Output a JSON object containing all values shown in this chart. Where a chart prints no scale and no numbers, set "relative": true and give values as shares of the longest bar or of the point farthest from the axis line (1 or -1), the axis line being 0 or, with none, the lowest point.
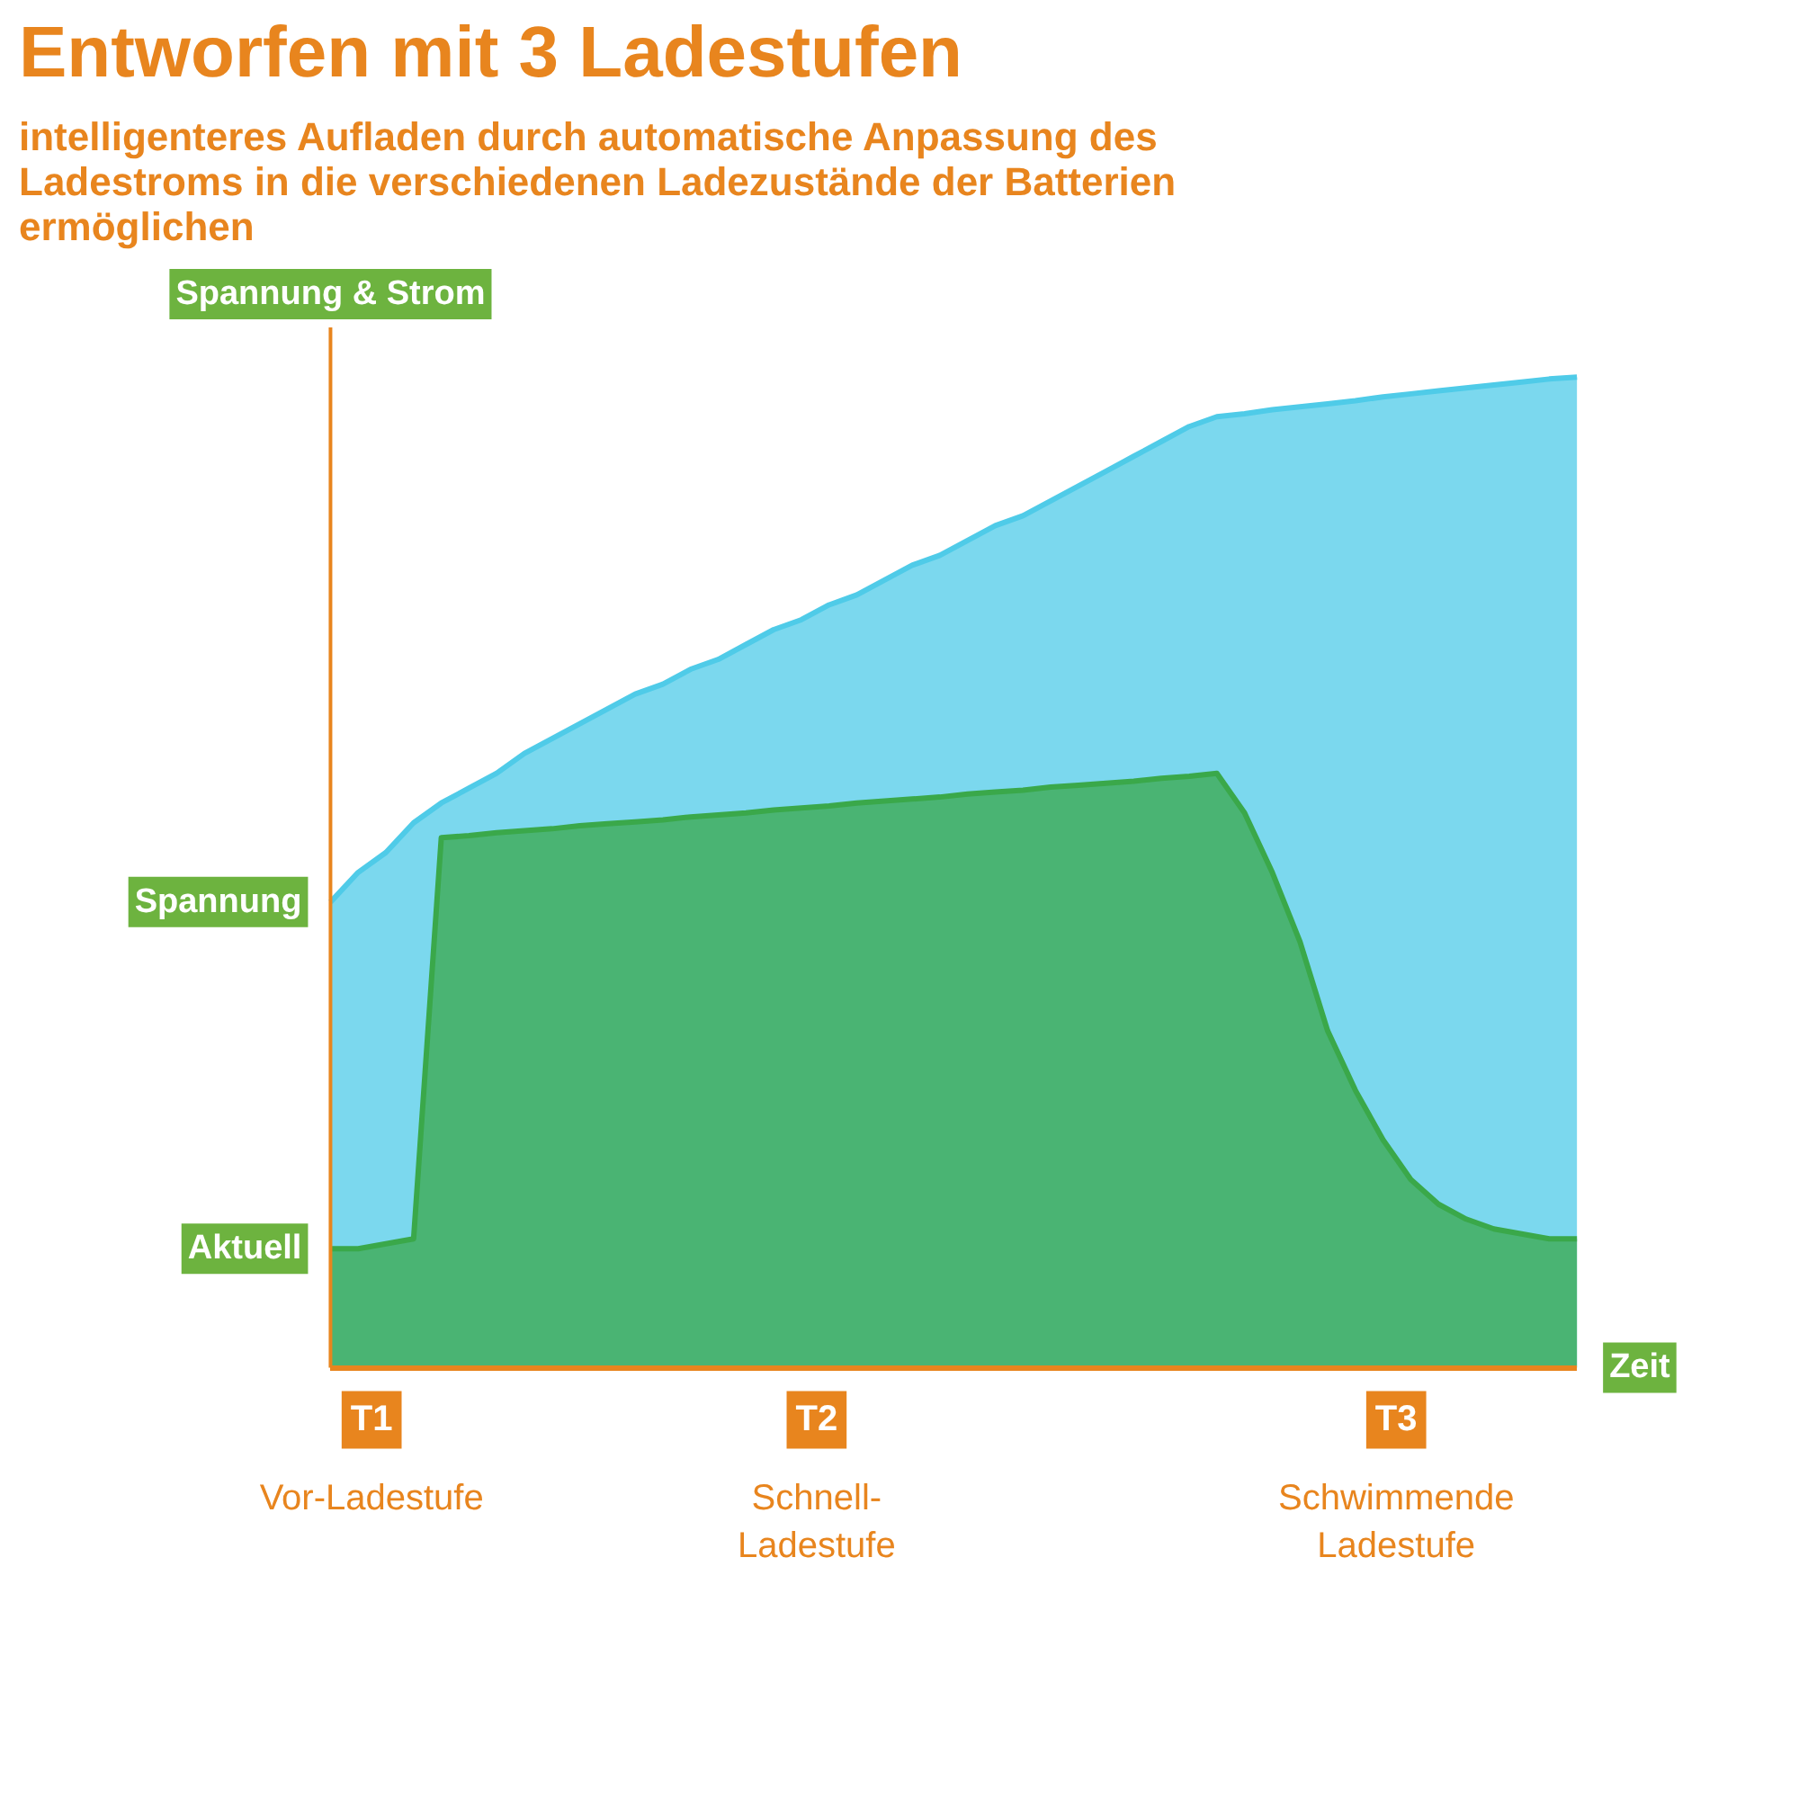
{
  "chart_data": {
    "type": "area",
    "title": "Entworfen mit 3 Ladestufen",
    "subtitle": "intelligenteres Aufladen durch automatische Anpassung des Ladestroms in die verschiedenen Ladezustände der Batterien ermöglichen",
    "xlabel": "Zeit",
    "ylabel": "Spannung & Strom",
    "relative": true,
    "categories": [
      null,
      null,
      null,
      null,
      null,
      null,
      null,
      null,
      null,
      null,
      null,
      null,
      null,
      null,
      null,
      null,
      null,
      null,
      null,
      null,
      null,
      null,
      null,
      null,
      null,
      null,
      null,
      null,
      null,
      null,
      null,
      null,
      null,
      null,
      null,
      null,
      null,
      null,
      null,
      null,
      null,
      null,
      null,
      null,
      null,
      null
    ],
    "series": [
      {
        "name": "Spannung",
        "color": "#4fcbe8",
        "values": [
          0.47,
          0.5,
          0.52,
          0.55,
          0.57,
          0.585,
          0.6,
          0.62,
          0.635,
          0.65,
          0.665,
          0.68,
          0.69,
          0.705,
          0.715,
          0.73,
          0.745,
          0.755,
          0.77,
          0.78,
          0.795,
          0.81,
          0.82,
          0.835,
          0.85,
          0.86,
          0.875,
          0.89,
          0.905,
          0.92,
          0.935,
          0.95,
          0.96,
          0.963,
          0.967,
          0.97,
          0.973,
          0.976,
          0.98,
          0.983,
          0.986,
          0.989,
          0.992,
          0.995,
          0.998,
          1
        ]
      },
      {
        "name": "Aktuell",
        "color": "#3aa84a",
        "values": [
          0.12,
          0.12,
          0.125,
          0.13,
          0.535,
          0.537,
          0.54,
          0.542,
          0.544,
          0.547,
          0.549,
          0.551,
          0.553,
          0.556,
          0.558,
          0.56,
          0.563,
          0.565,
          0.567,
          0.57,
          0.572,
          0.574,
          0.576,
          0.579,
          0.581,
          0.583,
          0.586,
          0.588,
          0.59,
          0.592,
          0.595,
          0.597,
          0.6,
          0.56,
          0.5,
          0.43,
          0.34,
          0.28,
          0.23,
          0.19,
          0.165,
          0.15,
          0.14,
          0.135,
          0.13,
          0.13
        ]
      }
    ],
    "annotations": [
      "T1",
      "Vor-Ladestufe",
      "T2",
      "Schnell-Ladestufe",
      "T3",
      "Schwimmende Ladestufe"
    ],
    "grid": false
  }
}
